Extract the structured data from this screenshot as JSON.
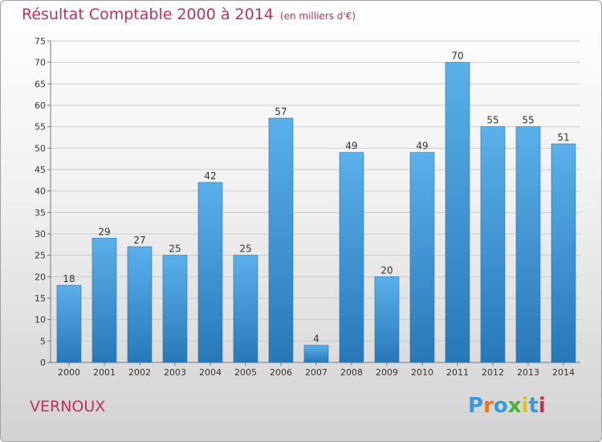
{
  "header": {
    "title": "Résultat Comptable 2000 à 2014",
    "unit": "(en milliers d'€)"
  },
  "footer": {
    "place": "VERNOUX",
    "logo_text": "Proxiti",
    "logo_colors": [
      "#3a9ad9",
      "#e87722",
      "#3a9ad9",
      "#4caf3c",
      "#e0c020",
      "#3a9ad9",
      "#c0305a"
    ]
  },
  "colors": {
    "title": "#c0305a",
    "bar_top": "#5ab0ea",
    "bar_bottom": "#2878b8",
    "grid": "#cccccc",
    "axis_text": "#333333"
  },
  "chart_data": {
    "type": "bar",
    "categories": [
      "2000",
      "2001",
      "2002",
      "2003",
      "2004",
      "2005",
      "2006",
      "2007",
      "2008",
      "2009",
      "2010",
      "2011",
      "2012",
      "2013",
      "2014"
    ],
    "values": [
      18,
      29,
      27,
      25,
      42,
      25,
      57,
      4,
      49,
      20,
      49,
      70,
      55,
      55,
      51
    ],
    "ylim": [
      0,
      75
    ],
    "yticks": [
      0,
      5,
      10,
      15,
      20,
      25,
      30,
      35,
      40,
      45,
      50,
      55,
      60,
      65,
      70,
      75
    ],
    "grid": true,
    "data_labels": true
  }
}
